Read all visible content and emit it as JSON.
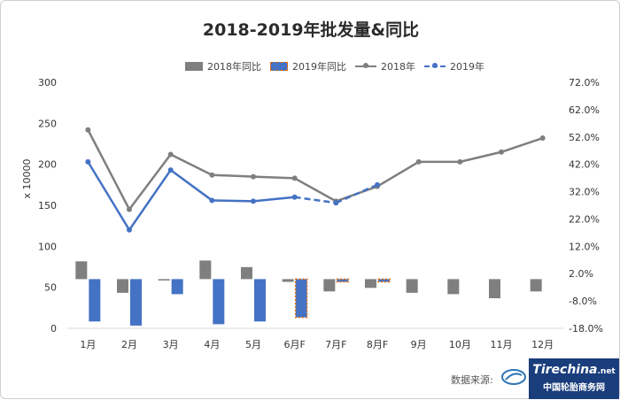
{
  "chart_data": {
    "type": "bar+line",
    "title": "2018-2019年批发量&同比",
    "ylabel": "x 10000",
    "categories": [
      "1月",
      "2月",
      "3月",
      "4月",
      "5月",
      "6月F",
      "7月F",
      "8月F",
      "9月",
      "10月",
      "11月",
      "12月"
    ],
    "y_left": {
      "range": [
        0,
        300
      ],
      "ticks": [
        "0",
        "50",
        "100",
        "150",
        "200",
        "250",
        "300"
      ]
    },
    "y_right": {
      "range": [
        -18.0,
        72.0
      ],
      "ticks": [
        "-18.0%",
        "-8.0%",
        "2.0%",
        "12.0%",
        "22.0%",
        "32.0%",
        "42.0%",
        "52.0%",
        "62.0%",
        "72.0%"
      ]
    },
    "legend": [
      "2018年同比",
      "2019年同比",
      "2018年",
      "2019年"
    ],
    "legend_position": "top",
    "series": [
      {
        "name": "2018年同比",
        "type": "bar",
        "axis": "right",
        "values": [
          6.5,
          -5.0,
          -0.5,
          6.8,
          4.4,
          -1.0,
          -4.5,
          -3.2,
          -5.0,
          -5.5,
          -7.0,
          -4.5
        ]
      },
      {
        "name": "2019年同比",
        "type": "bar",
        "axis": "right",
        "values": [
          -15.5,
          -17.0,
          -5.5,
          -16.5,
          -15.5,
          -14.0,
          -1.0,
          -1.0,
          null,
          null,
          null,
          null
        ],
        "forecast_from_index": 5
      },
      {
        "name": "2018年",
        "type": "line",
        "axis": "left",
        "values": [
          242,
          145,
          212,
          187,
          185,
          183,
          155,
          173,
          203,
          203,
          215,
          232
        ]
      },
      {
        "name": "2019年",
        "type": "line",
        "axis": "left",
        "values": [
          203,
          120,
          193,
          156,
          155,
          160,
          153,
          175,
          null,
          null,
          null,
          null
        ],
        "forecast_from_index": 5
      }
    ],
    "colors": {
      "2018": "#7f7f7f",
      "2019": "#4472c4",
      "forecast_border": "#e46c0a"
    },
    "grid": false
  },
  "footer": {
    "source_label": "数据来源:",
    "brand_name": "Tirechina",
    "brand_suffix": ".net",
    "brand_subtitle": "中国轮胎商务网"
  }
}
